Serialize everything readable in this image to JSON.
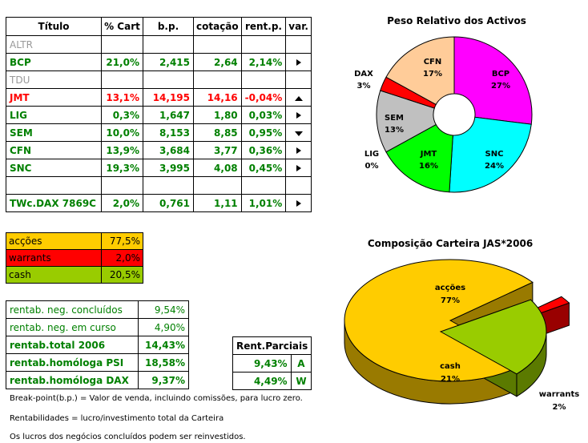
{
  "table": {
    "headers": [
      "Título",
      "% Cart",
      "b.p.",
      "cotação",
      "rent.p.",
      "var."
    ],
    "rows": [
      {
        "name": "ALTR",
        "pct": "",
        "bp": "",
        "cot": "",
        "rent": "",
        "var": "",
        "style": "gr"
      },
      {
        "name": "BCP",
        "pct": "21,0%",
        "bp": "2,415",
        "cot": "2,64",
        "rent": "2,14%",
        "var": "right",
        "style": "g"
      },
      {
        "name": "TDU",
        "pct": "",
        "bp": "",
        "cot": "",
        "rent": "",
        "var": "",
        "style": "gr"
      },
      {
        "name": "JMT",
        "pct": "13,1%",
        "bp": "14,195",
        "cot": "14,16",
        "rent": "-0,04%",
        "var": "up",
        "style": "rd"
      },
      {
        "name": "LIG",
        "pct": "0,3%",
        "bp": "1,647",
        "cot": "1,80",
        "rent": "0,03%",
        "var": "right",
        "style": "g"
      },
      {
        "name": "SEM",
        "pct": "10,0%",
        "bp": "8,153",
        "cot": "8,85",
        "rent": "0,95%",
        "var": "down",
        "style": "g"
      },
      {
        "name": "CFN",
        "pct": "13,9%",
        "bp": "3,684",
        "cot": "3,77",
        "rent": "0,36%",
        "var": "right",
        "style": "g"
      },
      {
        "name": "SNC",
        "pct": "19,3%",
        "bp": "3,995",
        "cot": "4,08",
        "rent": "0,45%",
        "var": "right",
        "style": "g"
      },
      {
        "name": "",
        "pct": "",
        "bp": "",
        "cot": "",
        "rent": "",
        "var": "",
        "style": "g"
      },
      {
        "name": "TWc.DAX 7869C",
        "pct": "2,0%",
        "bp": "0,761",
        "cot": "1,11",
        "rent": "1,01%",
        "var": "right",
        "style": "g"
      }
    ]
  },
  "allocation": [
    {
      "label": "acções",
      "value": "77,5%",
      "color": "#ffcc00"
    },
    {
      "label": "warrants",
      "value": "2,0%",
      "color": "#ff0000"
    },
    {
      "label": "cash",
      "value": "20,5%",
      "color": "#99cc00"
    }
  ],
  "stats": [
    {
      "label": "rentab. neg. concluídos",
      "value": "9,54%",
      "bold": false
    },
    {
      "label": "rentab. neg. em curso",
      "value": "4,90%",
      "bold": false
    },
    {
      "label": "rentab.total 2006",
      "value": "14,43%",
      "bold": true
    },
    {
      "label": "rentab.homóloga PSI",
      "value": "18,58%",
      "bold": true
    },
    {
      "label": "rentab.homóloga DAX",
      "value": "9,37%",
      "bold": true
    }
  ],
  "rent_parciais": {
    "title": "Rent.Parciais",
    "rows": [
      {
        "value": "9,43%",
        "tag": "A"
      },
      {
        "value": "4,49%",
        "tag": "W"
      }
    ]
  },
  "notes": [
    "Break-point(b.p.) = Valor de venda, incluindo comissões, para lucro zero.",
    "Rentabilidades = lucro/investimento total da Carteira",
    "Os lucros dos negócios concluídos podem ser reinvestidos."
  ],
  "chart_data": [
    {
      "type": "pie",
      "title": "Peso Relativo dos Activos",
      "donut": true,
      "categories": [
        "BCP",
        "SNC",
        "JMT",
        "LIG",
        "SEM",
        "DAX",
        "CFN"
      ],
      "values": [
        27,
        24,
        16,
        0,
        13,
        3,
        17
      ],
      "labels": [
        "27%",
        "24%",
        "16%",
        "0%",
        "13%",
        "3%",
        "17%"
      ],
      "colors": [
        "#ff00ff",
        "#00ffff",
        "#00ff00",
        "#ffffff",
        "#c0c0c0",
        "#ff0000",
        "#ffcc99"
      ]
    },
    {
      "type": "pie",
      "title": "Composição Carteira JAS*2006",
      "three_d": true,
      "categories": [
        "acções",
        "warrants",
        "cash"
      ],
      "values": [
        77,
        2,
        21
      ],
      "labels": [
        "77%",
        "2%",
        "21%"
      ],
      "colors": [
        "#ffcc00",
        "#ff0000",
        "#99cc00"
      ]
    }
  ]
}
